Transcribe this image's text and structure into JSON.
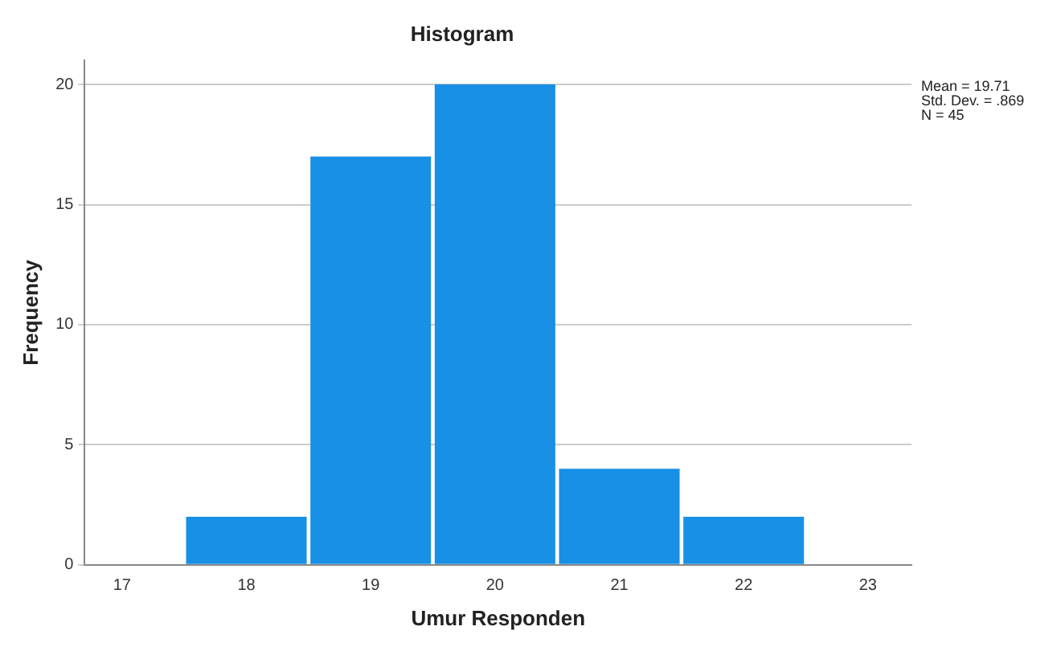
{
  "chart_data": {
    "type": "histogram",
    "title": "Histogram",
    "xlabel": "Umur Responden",
    "ylabel": "Frequency",
    "bins": [
      17.5,
      18.5,
      19.5,
      20.5,
      21.5,
      22.5
    ],
    "values": [
      2,
      17,
      20,
      4,
      2
    ],
    "color": "#1790e5",
    "xlim": [
      16.7,
      23.35
    ],
    "xticks": [
      17,
      18,
      19,
      20,
      21,
      22,
      23
    ],
    "ylim": [
      0,
      21
    ],
    "yticks": [
      0,
      5,
      10,
      15,
      20
    ],
    "grid": "y",
    "legend": false,
    "annotations": [
      "Mean = 19.71",
      "Std. Dev. = .869",
      "N = 45"
    ]
  }
}
